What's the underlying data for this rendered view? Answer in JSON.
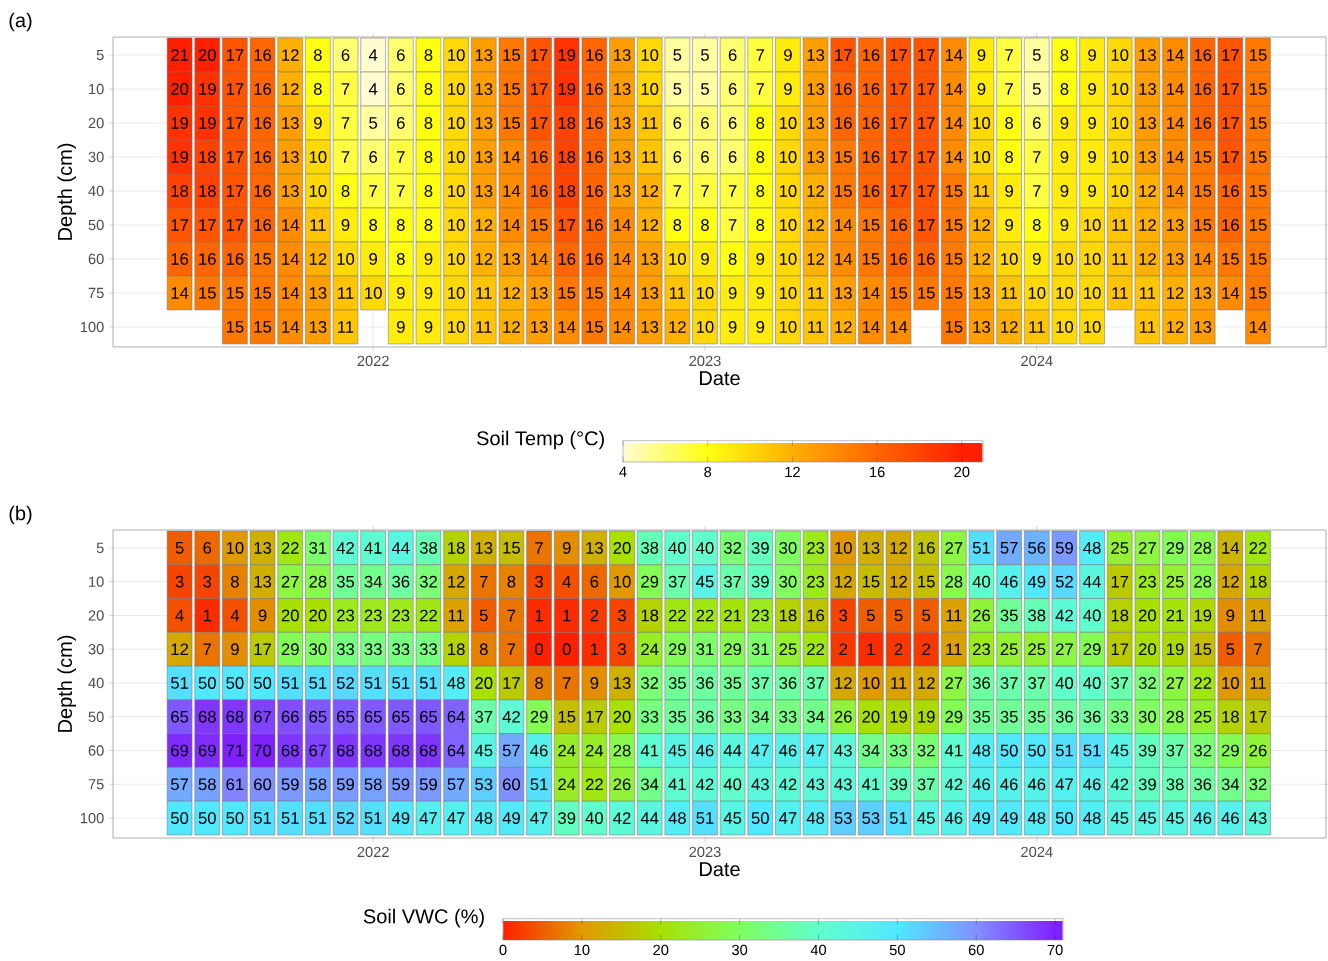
{
  "chart_data": [
    {
      "type": "heatmap",
      "title": "(a)",
      "xlabel": "Date",
      "ylabel": "Depth  (cm)",
      "clabel": "Soil Temp (°C)",
      "x": [
        "2021-06",
        "2021-07",
        "2021-08",
        "2021-09",
        "2021-10",
        "2021-11",
        "2021-12",
        "2022-01",
        "2022-02",
        "2022-03",
        "2022-04",
        "2022-05",
        "2022-06",
        "2022-07",
        "2022-08",
        "2022-09",
        "2022-10",
        "2022-11",
        "2022-12",
        "2023-01",
        "2023-02",
        "2023-03",
        "2023-04",
        "2023-05",
        "2023-06",
        "2023-07",
        "2023-08",
        "2023-09",
        "2023-10",
        "2023-11",
        "2023-12",
        "2024-01",
        "2024-02",
        "2024-03",
        "2024-04",
        "2024-05",
        "2024-06",
        "2024-07",
        "2024-08",
        "2024-09"
      ],
      "xlim": [
        "2021-03-19",
        "2024-11-15"
      ],
      "xticks": [
        {
          "value": "2022-01",
          "label": "2022"
        },
        {
          "value": "2023-01",
          "label": "2023"
        },
        {
          "value": "2024-01",
          "label": "2024"
        }
      ],
      "y_categories": [
        "5",
        "10",
        "20",
        "30",
        "40",
        "50",
        "60",
        "75",
        "100"
      ],
      "cells": [
        [
          21,
          20,
          17,
          16,
          12,
          8,
          6,
          4,
          6,
          8,
          10,
          13,
          15,
          17,
          19,
          16,
          13,
          10,
          5,
          5,
          6,
          7,
          9,
          13,
          17,
          16,
          17,
          17,
          14,
          9,
          7,
          5,
          8,
          9,
          10,
          13,
          14,
          16,
          17,
          15
        ],
        [
          20,
          19,
          17,
          16,
          12,
          8,
          7,
          4,
          6,
          8,
          10,
          13,
          15,
          17,
          19,
          16,
          13,
          10,
          5,
          5,
          6,
          7,
          9,
          13,
          16,
          16,
          17,
          17,
          14,
          9,
          7,
          5,
          8,
          9,
          10,
          13,
          14,
          16,
          17,
          15
        ],
        [
          19,
          19,
          17,
          16,
          13,
          9,
          7,
          5,
          6,
          8,
          10,
          13,
          15,
          17,
          18,
          16,
          13,
          11,
          6,
          6,
          6,
          8,
          10,
          13,
          16,
          16,
          17,
          17,
          14,
          10,
          8,
          6,
          9,
          9,
          10,
          13,
          14,
          16,
          17,
          15
        ],
        [
          19,
          18,
          17,
          16,
          13,
          10,
          7,
          6,
          7,
          8,
          10,
          13,
          14,
          16,
          18,
          16,
          13,
          11,
          6,
          6,
          6,
          8,
          10,
          13,
          15,
          16,
          17,
          17,
          14,
          10,
          8,
          7,
          9,
          9,
          10,
          13,
          14,
          15,
          17,
          15
        ],
        [
          18,
          18,
          17,
          16,
          13,
          10,
          8,
          7,
          7,
          8,
          10,
          13,
          14,
          16,
          18,
          16,
          13,
          12,
          7,
          7,
          7,
          8,
          10,
          12,
          15,
          16,
          17,
          17,
          15,
          11,
          9,
          7,
          9,
          9,
          10,
          12,
          14,
          15,
          16,
          15
        ],
        [
          17,
          17,
          17,
          16,
          14,
          11,
          9,
          8,
          8,
          8,
          10,
          12,
          14,
          15,
          17,
          16,
          14,
          12,
          8,
          8,
          7,
          8,
          10,
          12,
          14,
          15,
          16,
          17,
          15,
          12,
          9,
          8,
          9,
          10,
          11,
          12,
          13,
          15,
          16,
          15
        ],
        [
          16,
          16,
          16,
          15,
          14,
          12,
          10,
          9,
          8,
          9,
          10,
          12,
          13,
          14,
          16,
          16,
          14,
          13,
          10,
          9,
          8,
          9,
          10,
          12,
          14,
          15,
          16,
          16,
          15,
          12,
          10,
          9,
          10,
          10,
          11,
          12,
          13,
          14,
          15,
          15
        ],
        [
          14,
          15,
          15,
          15,
          14,
          13,
          11,
          10,
          9,
          9,
          10,
          11,
          12,
          13,
          15,
          15,
          14,
          13,
          11,
          10,
          9,
          9,
          10,
          11,
          13,
          14,
          15,
          15,
          15,
          13,
          11,
          10,
          10,
          10,
          11,
          11,
          12,
          13,
          14,
          15
        ],
        [
          null,
          null,
          15,
          15,
          14,
          13,
          11,
          null,
          9,
          9,
          10,
          11,
          12,
          13,
          14,
          15,
          14,
          13,
          12,
          10,
          9,
          9,
          10,
          11,
          12,
          14,
          14,
          null,
          15,
          13,
          12,
          11,
          10,
          10,
          null,
          11,
          12,
          13,
          null,
          14
        ]
      ],
      "clim": [
        4,
        21
      ],
      "cticks": [
        4,
        8,
        12,
        16,
        20
      ],
      "data_labels": true,
      "grid": true
    },
    {
      "type": "heatmap",
      "title": "(b)",
      "xlabel": "Date",
      "ylabel": "Depth  (cm)",
      "clabel": "Soil VWC (%)",
      "x": [
        "2021-06",
        "2021-07",
        "2021-08",
        "2021-09",
        "2021-10",
        "2021-11",
        "2021-12",
        "2022-01",
        "2022-02",
        "2022-03",
        "2022-04",
        "2022-05",
        "2022-06",
        "2022-07",
        "2022-08",
        "2022-09",
        "2022-10",
        "2022-11",
        "2022-12",
        "2023-01",
        "2023-02",
        "2023-03",
        "2023-04",
        "2023-05",
        "2023-06",
        "2023-07",
        "2023-08",
        "2023-09",
        "2023-10",
        "2023-11",
        "2023-12",
        "2024-01",
        "2024-02",
        "2024-03",
        "2024-04",
        "2024-05",
        "2024-06",
        "2024-07",
        "2024-08",
        "2024-09"
      ],
      "xlim": [
        "2021-03-19",
        "2024-11-15"
      ],
      "xticks": [
        {
          "value": "2022-01",
          "label": "2022"
        },
        {
          "value": "2023-01",
          "label": "2023"
        },
        {
          "value": "2024-01",
          "label": "2024"
        }
      ],
      "y_categories": [
        "5",
        "10",
        "20",
        "30",
        "40",
        "50",
        "60",
        "75",
        "100"
      ],
      "cells": [
        [
          5,
          6,
          10,
          13,
          22,
          31,
          42,
          41,
          44,
          38,
          18,
          13,
          15,
          7,
          9,
          13,
          20,
          38,
          40,
          40,
          32,
          39,
          30,
          23,
          10,
          13,
          12,
          16,
          27,
          51,
          57,
          56,
          59,
          48,
          25,
          27,
          29,
          28,
          14,
          22
        ],
        [
          3,
          3,
          8,
          13,
          27,
          28,
          35,
          34,
          36,
          32,
          12,
          7,
          8,
          3,
          4,
          6,
          10,
          29,
          37,
          45,
          37,
          39,
          30,
          23,
          12,
          15,
          12,
          15,
          28,
          40,
          46,
          49,
          52,
          44,
          17,
          23,
          25,
          28,
          12,
          18
        ],
        [
          4,
          1,
          4,
          9,
          20,
          20,
          23,
          23,
          23,
          22,
          11,
          5,
          7,
          1,
          1,
          2,
          3,
          18,
          22,
          22,
          21,
          23,
          18,
          16,
          3,
          5,
          5,
          5,
          11,
          26,
          35,
          38,
          42,
          40,
          18,
          20,
          21,
          19,
          9,
          11
        ],
        [
          12,
          7,
          9,
          17,
          29,
          30,
          33,
          33,
          33,
          33,
          18,
          8,
          7,
          0,
          0,
          1,
          3,
          24,
          29,
          31,
          29,
          31,
          25,
          22,
          2,
          1,
          2,
          2,
          11,
          23,
          25,
          25,
          27,
          29,
          17,
          20,
          19,
          15,
          5,
          7
        ],
        [
          51,
          50,
          50,
          50,
          51,
          51,
          52,
          51,
          51,
          51,
          48,
          20,
          17,
          8,
          7,
          9,
          13,
          32,
          35,
          36,
          35,
          37,
          36,
          37,
          12,
          10,
          11,
          12,
          27,
          36,
          37,
          37,
          40,
          40,
          37,
          32,
          27,
          22,
          10,
          11
        ],
        [
          65,
          68,
          68,
          67,
          66,
          65,
          65,
          65,
          65,
          65,
          64,
          37,
          42,
          29,
          15,
          17,
          20,
          33,
          35,
          36,
          33,
          34,
          33,
          34,
          26,
          20,
          19,
          19,
          29,
          35,
          35,
          35,
          36,
          36,
          33,
          30,
          28,
          25,
          18,
          17
        ],
        [
          69,
          69,
          71,
          70,
          68,
          67,
          68,
          68,
          68,
          68,
          64,
          45,
          57,
          46,
          24,
          24,
          28,
          41,
          45,
          46,
          44,
          47,
          46,
          47,
          43,
          34,
          33,
          32,
          41,
          48,
          50,
          50,
          51,
          51,
          45,
          39,
          37,
          32,
          29,
          26
        ],
        [
          57,
          58,
          61,
          60,
          59,
          58,
          59,
          58,
          59,
          59,
          57,
          53,
          60,
          51,
          24,
          22,
          26,
          34,
          41,
          42,
          40,
          43,
          42,
          43,
          43,
          41,
          39,
          37,
          42,
          46,
          46,
          46,
          47,
          46,
          42,
          39,
          38,
          36,
          34,
          32
        ],
        [
          50,
          50,
          50,
          51,
          51,
          51,
          52,
          51,
          49,
          47,
          47,
          48,
          49,
          47,
          39,
          40,
          42,
          44,
          48,
          51,
          45,
          50,
          47,
          48,
          53,
          53,
          51,
          45,
          46,
          49,
          49,
          48,
          50,
          48,
          45,
          45,
          45,
          46,
          46,
          43
        ]
      ],
      "clim": [
        0,
        71
      ],
      "cticks": [
        0,
        10,
        20,
        30,
        40,
        50,
        60,
        70
      ],
      "data_labels": true,
      "grid": true
    }
  ]
}
